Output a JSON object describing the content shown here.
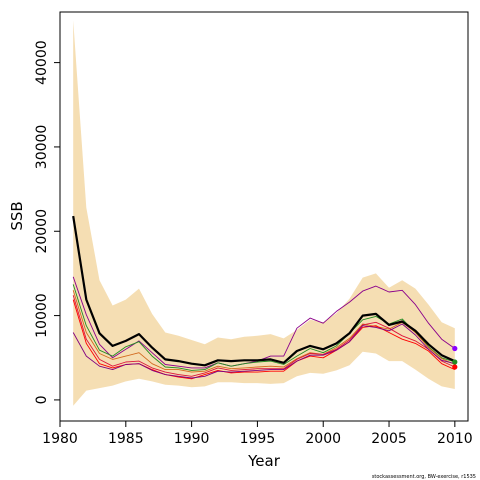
{
  "chart_data": {
    "type": "line",
    "xlabel": "Year",
    "ylabel": "SSB",
    "xlim": [
      1980,
      2011
    ],
    "ylim": [
      -2500,
      46000
    ],
    "x_ticks": [
      1980,
      1985,
      1990,
      1995,
      2000,
      2005,
      2010
    ],
    "y_ticks": [
      0,
      10000,
      20000,
      30000,
      40000
    ],
    "x": [
      1981,
      1982,
      1983,
      1984,
      1985,
      1986,
      1987,
      1988,
      1989,
      1990,
      1991,
      1992,
      1993,
      1994,
      1995,
      1996,
      1997,
      1998,
      1999,
      2000,
      2001,
      2002,
      2003,
      2004,
      2005,
      2006,
      2007,
      2008,
      2009,
      2010
    ],
    "band_upper": [
      45000,
      22800,
      14200,
      11200,
      11900,
      13200,
      10200,
      8000,
      7600,
      7100,
      6600,
      7400,
      7200,
      7500,
      7600,
      7800,
      7300,
      8300,
      9500,
      9200,
      10300,
      12000,
      14500,
      15000,
      13300,
      14200,
      13200,
      11300,
      9200,
      8500
    ],
    "band_lower": [
      -700,
      1100,
      1400,
      1700,
      2200,
      2500,
      2200,
      1800,
      1700,
      1500,
      1600,
      2100,
      2100,
      2000,
      2000,
      1900,
      2000,
      2800,
      3200,
      3100,
      3500,
      4100,
      5700,
      5500,
      4600,
      4600,
      3600,
      2500,
      1600,
      1300
    ],
    "series": [
      {
        "color": "#000000",
        "width": 2.2,
        "values": [
          21800,
          11900,
          7900,
          6400,
          7000,
          7800,
          6200,
          4800,
          4600,
          4300,
          4100,
          4700,
          4600,
          4700,
          4700,
          4800,
          4400,
          5800,
          6400,
          6000,
          6700,
          7900,
          10000,
          10200,
          8900,
          9300,
          8200,
          6600,
          5300,
          4600
        ]
      },
      {
        "color": "#8b008b",
        "width": 0.9,
        "values": [
          14600,
          10100,
          6600,
          5000,
          6000,
          7000,
          5600,
          4200,
          4000,
          3800,
          3800,
          4400,
          4000,
          4300,
          4600,
          5200,
          5200,
          8500,
          9700,
          9100,
          10500,
          11600,
          12900,
          13500,
          12800,
          13000,
          11300,
          9100,
          7200,
          6100
        ]
      },
      {
        "color": "#228b22",
        "width": 0.9,
        "values": [
          13700,
          8800,
          5900,
          5200,
          6300,
          6900,
          5200,
          3900,
          3800,
          3500,
          3600,
          4400,
          4000,
          4300,
          4500,
          4600,
          4200,
          5200,
          6100,
          5600,
          6400,
          7900,
          9500,
          9900,
          9000,
          9600,
          8000,
          6300,
          5000,
          4500
        ]
      },
      {
        "color": "#d2691e",
        "width": 0.9,
        "values": [
          13000,
          8000,
          5500,
          4800,
          5200,
          5600,
          4300,
          3600,
          3600,
          3300,
          3400,
          4000,
          3700,
          3800,
          3900,
          4000,
          3900,
          4900,
          5600,
          5400,
          6200,
          7300,
          9000,
          8700,
          8400,
          9200,
          8000,
          6200,
          4900,
          4200
        ]
      },
      {
        "color": "#dc143c",
        "width": 0.9,
        "values": [
          12400,
          7200,
          4800,
          4000,
          4500,
          4600,
          3800,
          3300,
          3000,
          2800,
          3200,
          3800,
          3500,
          3600,
          3700,
          3700,
          3700,
          4800,
          5500,
          5400,
          6000,
          7100,
          8900,
          9200,
          8500,
          7600,
          7000,
          6000,
          4600,
          3900
        ]
      },
      {
        "color": "#ff0000",
        "width": 0.9,
        "values": [
          11900,
          6700,
          4300,
          3800,
          4200,
          4300,
          3600,
          3000,
          2700,
          2500,
          3000,
          3500,
          3200,
          3300,
          3300,
          3400,
          3400,
          4600,
          5200,
          5000,
          5900,
          6900,
          8600,
          8800,
          8000,
          7200,
          6700,
          5800,
          4300,
          3600
        ]
      },
      {
        "color": "#800080",
        "width": 0.9,
        "values": [
          8000,
          5200,
          4000,
          3600,
          4200,
          4300,
          3500,
          3000,
          2800,
          2600,
          2800,
          3400,
          3300,
          3400,
          3500,
          3600,
          3600,
          4600,
          5300,
          5300,
          5900,
          6900,
          8800,
          8600,
          8200,
          9000,
          7700,
          6000,
          4700,
          4300
        ]
      }
    ],
    "endpoints": [
      {
        "color": "#8b00ff",
        "value": 6100
      },
      {
        "color": "#228b22",
        "value": 4500
      },
      {
        "color": "#ff0000",
        "value": 3900
      }
    ]
  },
  "credit": "stockassessment.org, BW-exercise, r1535"
}
